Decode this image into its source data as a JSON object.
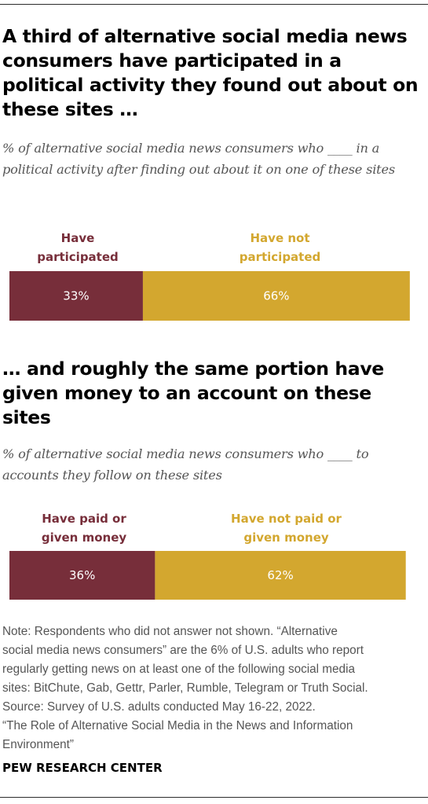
{
  "colors": {
    "participated": "#772e3a",
    "not_participated": "#d3a72f",
    "bar_text": "#ffffff"
  },
  "chart_data": [
    {
      "type": "bar",
      "orientation": "horizontal-stacked",
      "title": "A third of alternative social media news consumers have participated in a political activity they found out about on these sites …",
      "subtitle": "% of alternative social media news consumers who ____ in a political activity after finding out about it on one of these sites",
      "categories": [
        "Have participated",
        "Have not participated"
      ],
      "values": [
        33,
        66
      ],
      "value_labels": [
        "33%",
        "66%"
      ],
      "colors": [
        "#772e3a",
        "#d3a72f"
      ],
      "xlim": [
        0,
        100
      ],
      "grid": false
    },
    {
      "type": "bar",
      "orientation": "horizontal-stacked",
      "title": "… and roughly the same portion have given money to an account on these sites",
      "subtitle": "% of alternative social media news consumers who ____ to accounts they follow on these sites",
      "categories": [
        "Have paid or given money",
        "Have not paid or given money"
      ],
      "values": [
        36,
        62
      ],
      "value_labels": [
        "36%",
        "62%"
      ],
      "colors": [
        "#772e3a",
        "#d3a72f"
      ],
      "xlim": [
        0,
        100
      ],
      "grid": false
    }
  ],
  "labels": {
    "chart1_cat1_line1": "Have",
    "chart1_cat1_line2": "participated",
    "chart1_cat2_line1": "Have not",
    "chart1_cat2_line2": "participated",
    "chart2_cat1_line1": "Have paid or",
    "chart2_cat1_line2": "given money",
    "chart2_cat2_line1": "Have not paid or",
    "chart2_cat2_line2": "given money"
  },
  "note_lines": [
    "Note: Respondents who did not answer not shown. “Alternative",
    "social media news consumers” are the 6% of U.S. adults who report",
    "regularly getting news on at least one of the following social media",
    "sites: BitChute, Gab, Gettr, Parler, Rumble, Telegram or Truth Social.",
    "Source: Survey of U.S. adults conducted May 16-22, 2022.",
    "“The Role of Alternative Social Media in the News and Information",
    "Environment”"
  ],
  "brand": "PEW RESEARCH CENTER"
}
